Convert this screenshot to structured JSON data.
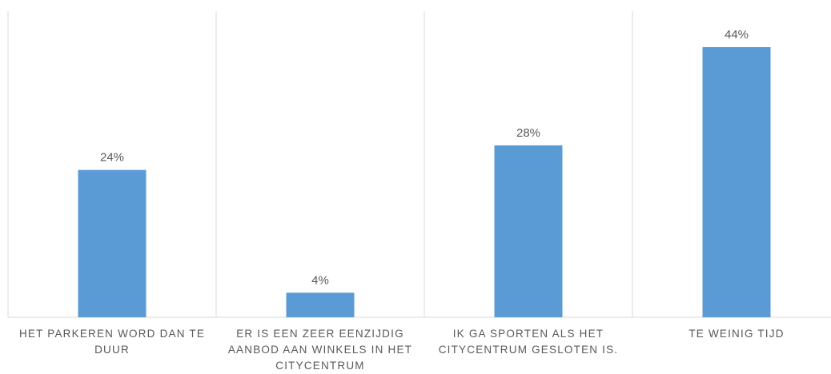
{
  "chart_data": {
    "type": "bar",
    "categories": [
      "HET PARKEREN WORD DAN TE DUUR",
      "ER IS EEN ZEER EENZIJDIG AANBOD AAN WINKELS IN HET CITYCENTRUM",
      "IK GA SPORTEN ALS HET CITYCENTRUM GESLOTEN IS.",
      "TE WEINIG TIJD"
    ],
    "values": [
      24,
      4,
      28,
      44
    ],
    "value_labels": [
      "24%",
      "4%",
      "28%",
      "44%"
    ],
    "color": "#5b9bd5"
  }
}
